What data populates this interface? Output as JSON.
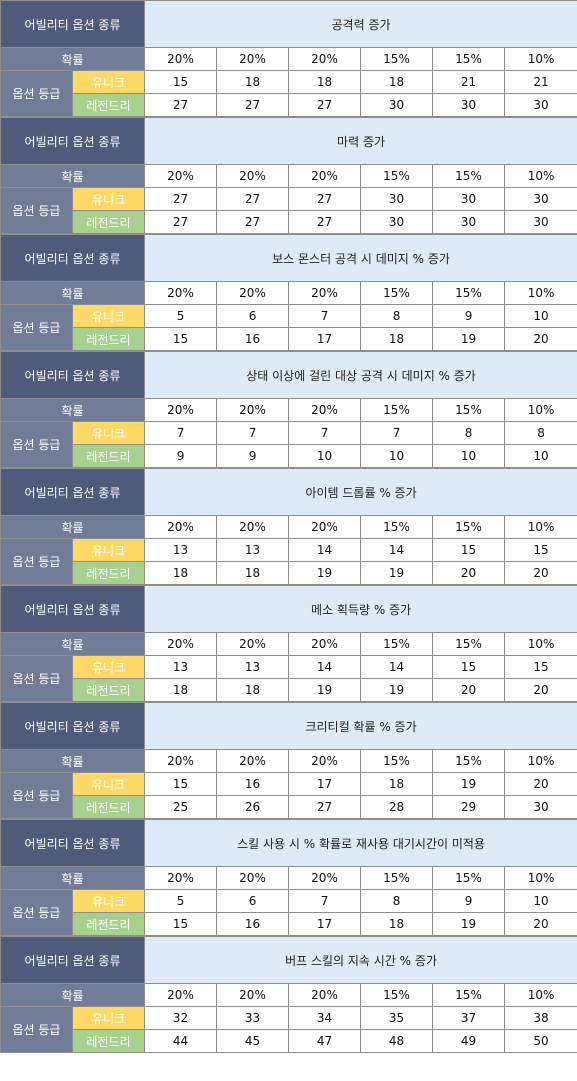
{
  "labels": {
    "type": "어빌리티 옵션 종류",
    "prob": "확률",
    "grade": "옵션 등급",
    "unique": "유니크",
    "legendary": "레전드리"
  },
  "probabilities": [
    "20%",
    "20%",
    "20%",
    "15%",
    "15%",
    "10%"
  ],
  "blocks": [
    {
      "title": "공격력 증가",
      "unique": [
        "15",
        "18",
        "18",
        "18",
        "21",
        "21"
      ],
      "legendary": [
        "27",
        "27",
        "27",
        "30",
        "30",
        "30"
      ]
    },
    {
      "title": "마력 증가",
      "unique": [
        "27",
        "27",
        "27",
        "30",
        "30",
        "30"
      ],
      "legendary": [
        "27",
        "27",
        "27",
        "30",
        "30",
        "30"
      ]
    },
    {
      "title": "보스 몬스터 공격 시 데미지 % 증가",
      "unique": [
        "5",
        "6",
        "7",
        "8",
        "9",
        "10"
      ],
      "legendary": [
        "15",
        "16",
        "17",
        "18",
        "19",
        "20"
      ]
    },
    {
      "title": "상태 이상에 걸린 대상 공격 시 데미지 % 증가",
      "unique": [
        "7",
        "7",
        "7",
        "7",
        "8",
        "8"
      ],
      "legendary": [
        "9",
        "9",
        "10",
        "10",
        "10",
        "10"
      ]
    },
    {
      "title": "아이템 드롭률 % 증가",
      "unique": [
        "13",
        "13",
        "14",
        "14",
        "15",
        "15"
      ],
      "legendary": [
        "18",
        "18",
        "19",
        "19",
        "20",
        "20"
      ]
    },
    {
      "title": "메소 획득량 % 증가",
      "unique": [
        "13",
        "13",
        "14",
        "14",
        "15",
        "15"
      ],
      "legendary": [
        "18",
        "18",
        "19",
        "19",
        "20",
        "20"
      ]
    },
    {
      "title": "크리티컬 확률 % 증가",
      "unique": [
        "15",
        "16",
        "17",
        "18",
        "19",
        "20"
      ],
      "legendary": [
        "25",
        "26",
        "27",
        "28",
        "29",
        "30"
      ]
    },
    {
      "title": "스킬 사용 시 % 확률로 재사용 대기시간이 미적용",
      "unique": [
        "5",
        "6",
        "7",
        "8",
        "9",
        "10"
      ],
      "legendary": [
        "15",
        "16",
        "17",
        "18",
        "19",
        "20"
      ]
    },
    {
      "title": "버프 스킬의 지속 시간 % 증가",
      "unique": [
        "32",
        "33",
        "34",
        "35",
        "37",
        "38"
      ],
      "legendary": [
        "44",
        "45",
        "47",
        "48",
        "49",
        "50"
      ]
    }
  ]
}
